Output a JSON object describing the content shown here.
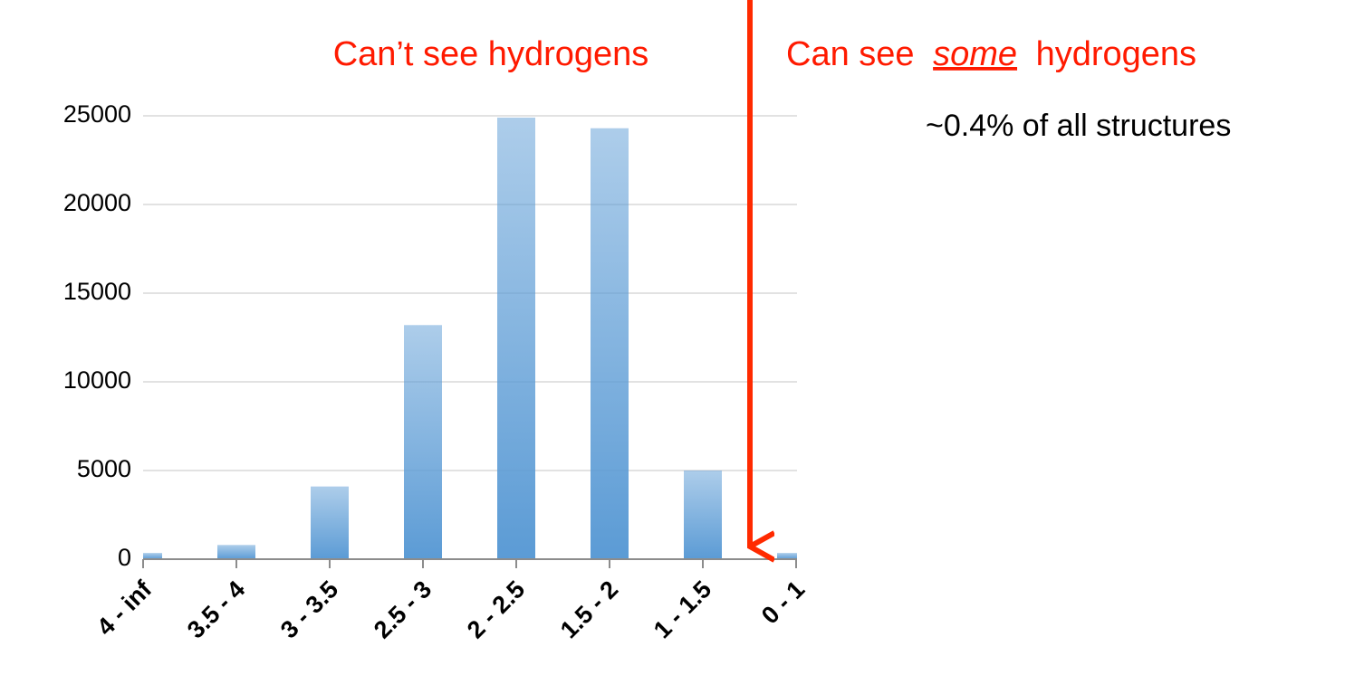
{
  "chart_data": {
    "type": "bar",
    "categories": [
      "4 - inf",
      "3.5 - 4",
      "3 - 3.5",
      "2.5 - 3",
      "2 - 2.5",
      "1.5 - 2",
      "1 - 1.5",
      "0 - 1"
    ],
    "values": [
      350,
      800,
      4100,
      13200,
      24900,
      24300,
      5000,
      350
    ],
    "color": "#5b9bd5",
    "ylim": [
      0,
      25000
    ],
    "yticks": [
      0,
      5000,
      10000,
      15000,
      20000,
      25000
    ],
    "grid": true,
    "annotations": {
      "left": "Can’t see hydrogens",
      "right": [
        "Can see",
        "some",
        "hydrogens"
      ],
      "note": "~0.4% of all structures"
    }
  }
}
